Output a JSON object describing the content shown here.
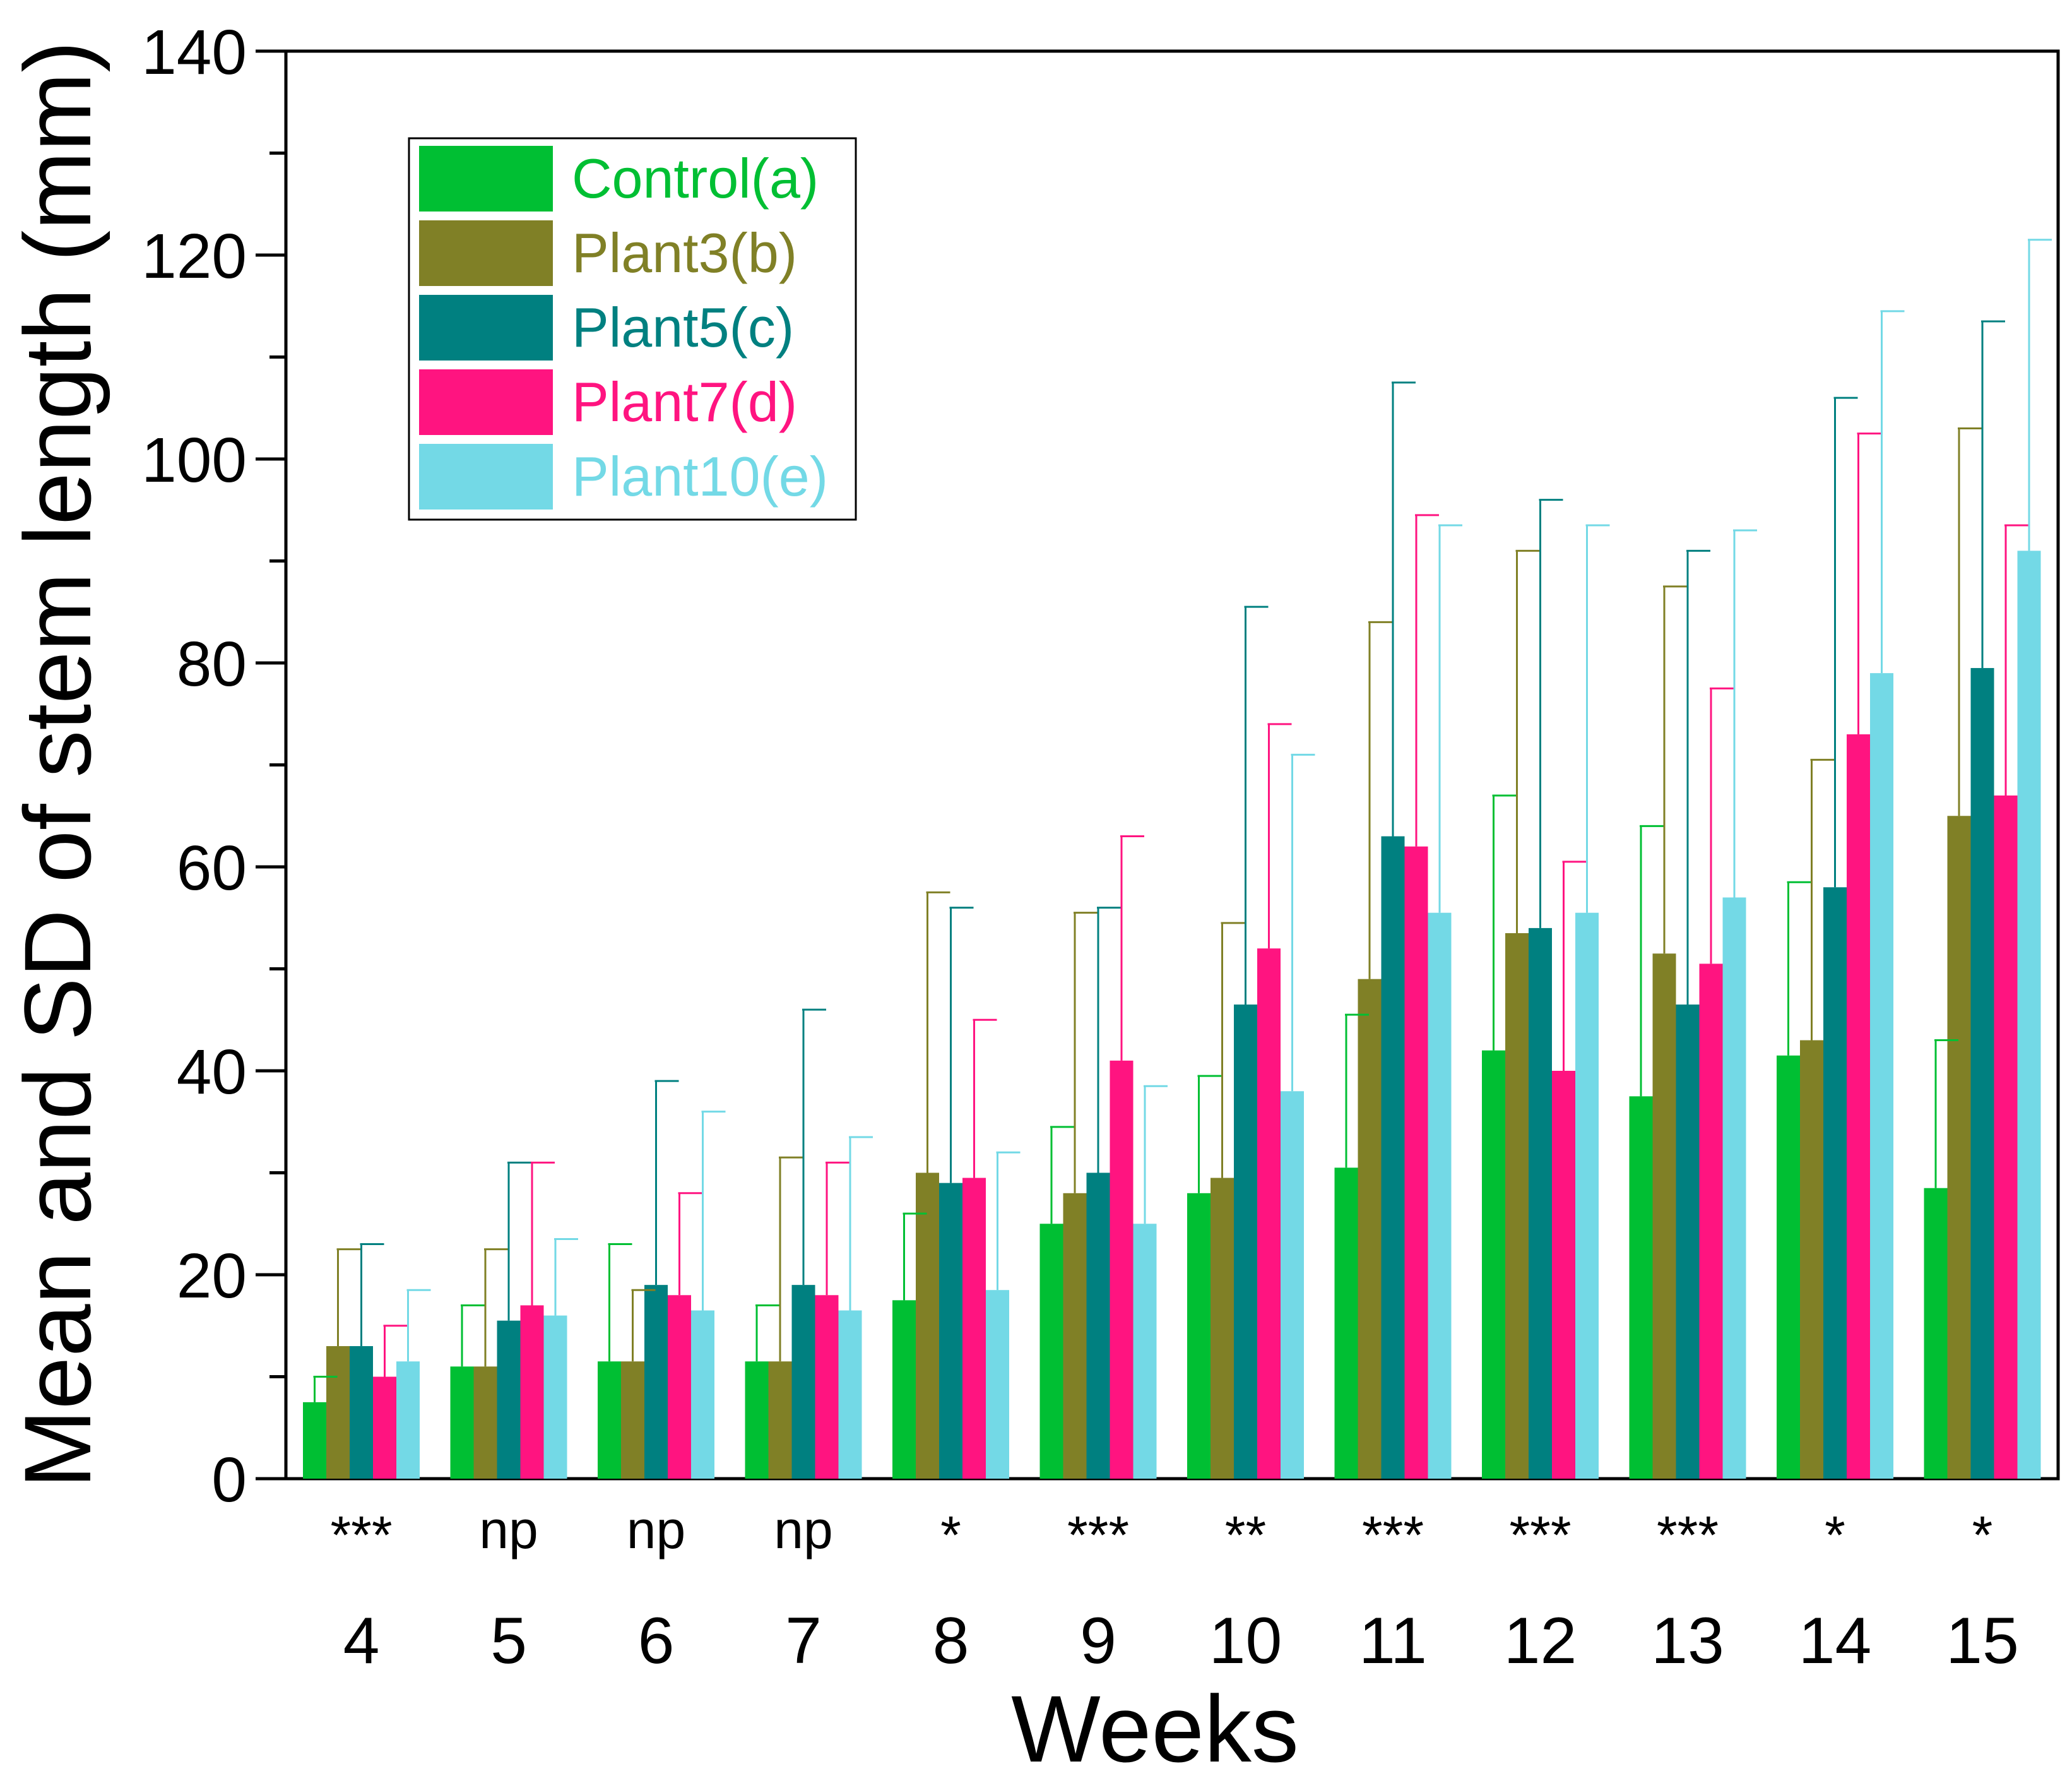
{
  "chart_data": {
    "type": "bar",
    "title": "",
    "xlabel": "Weeks",
    "ylabel": "Mean and SD of stem length (mm)",
    "ylim": [
      0,
      140
    ],
    "yticks": [
      0,
      20,
      40,
      60,
      80,
      100,
      120,
      140
    ],
    "y_minor_step": 10,
    "grid": false,
    "legend_position": "top-left",
    "categories": [
      "4",
      "5",
      "6",
      "7",
      "8",
      "9",
      "10",
      "11",
      "12",
      "13",
      "14",
      "15"
    ],
    "significance": [
      "***",
      "np",
      "np",
      "np",
      "*",
      "***",
      "**",
      "***",
      "***",
      "***",
      "*",
      "*"
    ],
    "series": [
      {
        "name": "Control(a)",
        "color": "#00bf33",
        "values": [
          7.5,
          11,
          11.5,
          11.5,
          17.5,
          25,
          28,
          30.5,
          42,
          37.5,
          41.5,
          28.5
        ],
        "sd": [
          2.5,
          6,
          11.5,
          5.5,
          8.5,
          9.5,
          11.5,
          15,
          25,
          26.5,
          17,
          14.5
        ]
      },
      {
        "name": "Plant3(b)",
        "color": "#808026",
        "values": [
          13,
          11,
          11.5,
          11.5,
          30,
          28,
          29.5,
          49,
          53.5,
          51.5,
          43,
          65
        ],
        "sd": [
          9.5,
          11.5,
          7,
          20,
          27.5,
          27.5,
          25,
          35,
          37.5,
          36,
          27.5,
          38
        ]
      },
      {
        "name": "Plant5(c)",
        "color": "#008080",
        "values": [
          13,
          15.5,
          19,
          19,
          29,
          30,
          46.5,
          63,
          54,
          46.5,
          58,
          79.5
        ],
        "sd": [
          10,
          15.5,
          20,
          27,
          27,
          26,
          39,
          44.5,
          42,
          44.5,
          48,
          34
        ]
      },
      {
        "name": "Plant7(d)",
        "color": "#ff1480",
        "values": [
          10,
          17,
          18,
          18,
          29.5,
          41,
          52,
          62,
          40,
          50.5,
          73,
          67
        ],
        "sd": [
          5,
          14,
          10,
          13,
          15.5,
          22,
          22,
          32.5,
          20.5,
          27,
          29.5,
          26.5
        ]
      },
      {
        "name": "Plant10(e)",
        "color": "#73d9e6",
        "values": [
          11.5,
          16,
          16.5,
          16.5,
          18.5,
          25,
          38,
          55.5,
          55.5,
          57,
          79,
          91
        ],
        "sd": [
          7,
          7.5,
          19.5,
          17,
          13.5,
          13.5,
          33,
          38,
          38,
          36,
          35.5,
          30.5
        ]
      }
    ]
  }
}
